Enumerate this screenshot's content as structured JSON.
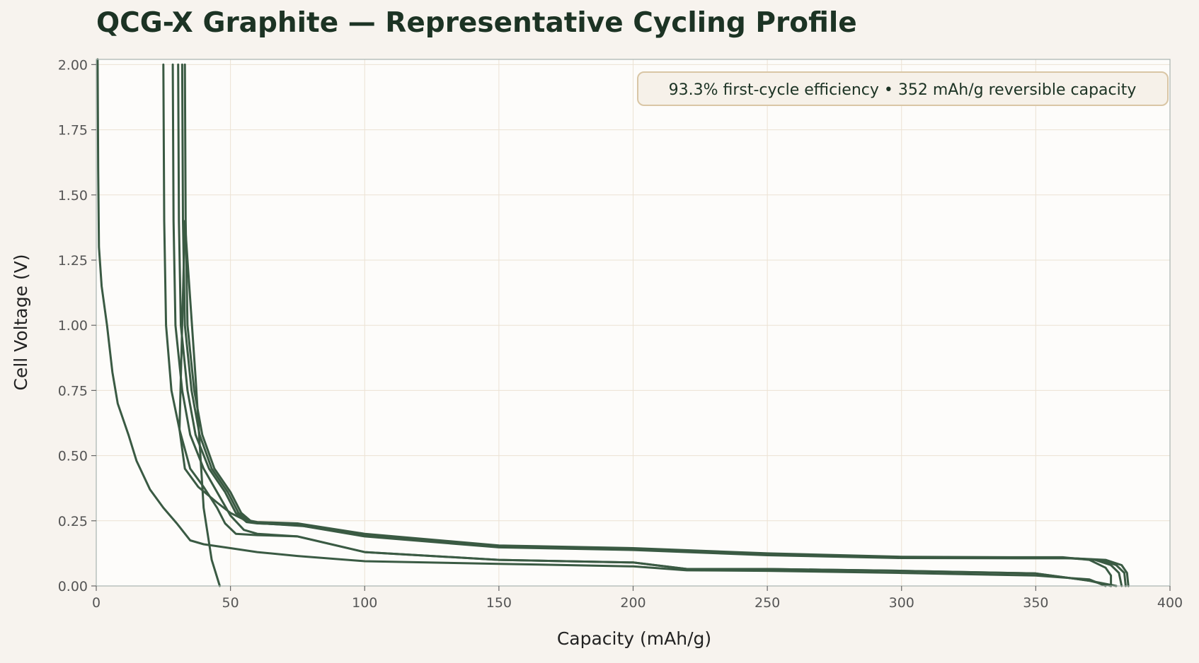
{
  "chart_data": {
    "type": "line",
    "title": "QCG-X Graphite — Representative Cycling Profile",
    "xlabel": "Capacity (mAh/g)",
    "ylabel": "Cell Voltage (V)",
    "xlim": [
      0,
      400
    ],
    "ylim": [
      0,
      2.02
    ],
    "x_ticks": [
      0,
      50,
      100,
      150,
      200,
      250,
      300,
      350,
      400
    ],
    "y_ticks": [
      0.0,
      0.25,
      0.5,
      0.75,
      1.0,
      1.25,
      1.5,
      1.75,
      2.0
    ],
    "grid": true,
    "line_color": "#3a5a43",
    "annotation": {
      "text": "93.3% first-cycle efficiency  •  352 mAh/g reversible capacity",
      "placement": "top-right"
    },
    "series": [
      {
        "points": [
          [
            0.5,
            2.02
          ],
          [
            0.7,
            1.6
          ],
          [
            1,
            1.3
          ],
          [
            2,
            1.15
          ],
          [
            4,
            1.0
          ],
          [
            6,
            0.82
          ],
          [
            8,
            0.7
          ],
          [
            12,
            0.58
          ],
          [
            15,
            0.48
          ],
          [
            20,
            0.37
          ],
          [
            25,
            0.3
          ],
          [
            30,
            0.24
          ],
          [
            35,
            0.175
          ],
          [
            40,
            0.16
          ],
          [
            50,
            0.145
          ],
          [
            60,
            0.13
          ],
          [
            75,
            0.115
          ],
          [
            100,
            0.095
          ],
          [
            150,
            0.085
          ],
          [
            200,
            0.075
          ],
          [
            220,
            0.06
          ],
          [
            250,
            0.058
          ],
          [
            300,
            0.05
          ],
          [
            350,
            0.04
          ],
          [
            370,
            0.025
          ],
          [
            376,
            0.0
          ]
        ]
      },
      {
        "points": [
          [
            25,
            2.0
          ],
          [
            25.3,
            1.4
          ],
          [
            26,
            1.0
          ],
          [
            28,
            0.75
          ],
          [
            31,
            0.6
          ],
          [
            35,
            0.45
          ],
          [
            40,
            0.38
          ],
          [
            45,
            0.3
          ],
          [
            48,
            0.24
          ],
          [
            52,
            0.2
          ],
          [
            60,
            0.195
          ],
          [
            75,
            0.19
          ],
          [
            100,
            0.13
          ],
          [
            150,
            0.1
          ],
          [
            200,
            0.09
          ],
          [
            220,
            0.065
          ],
          [
            250,
            0.065
          ],
          [
            300,
            0.058
          ],
          [
            350,
            0.048
          ],
          [
            370,
            0.02
          ],
          [
            378,
            0.0
          ]
        ]
      },
      {
        "points": [
          [
            46,
            0.0
          ],
          [
            43,
            0.1
          ],
          [
            40,
            0.3
          ],
          [
            37,
            0.8
          ],
          [
            34,
            1.25
          ],
          [
            33,
            1.4
          ],
          [
            32,
            1.0
          ],
          [
            31,
            0.6
          ],
          [
            33,
            0.45
          ],
          [
            38,
            0.38
          ],
          [
            45,
            0.32
          ],
          [
            50,
            0.28
          ],
          [
            55,
            0.255
          ],
          [
            60,
            0.245
          ],
          [
            75,
            0.24
          ],
          [
            100,
            0.2
          ],
          [
            150,
            0.155
          ],
          [
            200,
            0.145
          ],
          [
            250,
            0.125
          ],
          [
            300,
            0.112
          ],
          [
            340,
            0.11
          ],
          [
            360,
            0.11
          ],
          [
            370,
            0.1
          ],
          [
            376,
            0.07
          ],
          [
            378,
            0.04
          ],
          [
            378,
            0.0
          ]
        ]
      },
      {
        "points": [
          [
            28.5,
            2.0
          ],
          [
            28.8,
            1.4
          ],
          [
            29.5,
            1.0
          ],
          [
            32,
            0.75
          ],
          [
            35,
            0.58
          ],
          [
            40,
            0.45
          ],
          [
            45,
            0.36
          ],
          [
            50,
            0.27
          ],
          [
            55,
            0.215
          ],
          [
            60,
            0.2
          ],
          [
            75,
            0.19
          ],
          [
            100,
            0.13
          ],
          [
            150,
            0.1
          ],
          [
            200,
            0.09
          ],
          [
            220,
            0.065
          ],
          [
            250,
            0.065
          ],
          [
            300,
            0.058
          ],
          [
            350,
            0.048
          ],
          [
            370,
            0.02
          ],
          [
            380,
            0.0
          ]
        ]
      },
      {
        "points": [
          [
            30.5,
            2.0
          ],
          [
            30.8,
            1.4
          ],
          [
            31.5,
            1.0
          ],
          [
            34,
            0.75
          ],
          [
            37,
            0.58
          ],
          [
            42,
            0.45
          ],
          [
            48,
            0.36
          ],
          [
            52,
            0.28
          ],
          [
            56,
            0.245
          ],
          [
            60,
            0.24
          ],
          [
            75,
            0.235
          ],
          [
            100,
            0.195
          ],
          [
            150,
            0.152
          ],
          [
            200,
            0.142
          ],
          [
            250,
            0.122
          ],
          [
            300,
            0.11
          ],
          [
            340,
            0.108
          ],
          [
            360,
            0.108
          ],
          [
            372,
            0.1
          ],
          [
            378,
            0.08
          ],
          [
            381,
            0.05
          ],
          [
            382,
            0.0
          ]
        ]
      },
      {
        "points": [
          [
            32,
            2.0
          ],
          [
            32.3,
            1.4
          ],
          [
            33,
            1.0
          ],
          [
            35.5,
            0.75
          ],
          [
            38.5,
            0.58
          ],
          [
            43,
            0.45
          ],
          [
            49,
            0.36
          ],
          [
            53,
            0.28
          ],
          [
            57,
            0.245
          ],
          [
            61,
            0.24
          ],
          [
            76,
            0.232
          ],
          [
            100,
            0.192
          ],
          [
            150,
            0.15
          ],
          [
            200,
            0.14
          ],
          [
            250,
            0.12
          ],
          [
            300,
            0.108
          ],
          [
            342,
            0.107
          ],
          [
            362,
            0.107
          ],
          [
            374,
            0.1
          ],
          [
            380,
            0.08
          ],
          [
            383,
            0.05
          ],
          [
            383.5,
            0.0
          ]
        ]
      },
      {
        "points": [
          [
            33,
            2.0
          ],
          [
            33.3,
            1.4
          ],
          [
            34,
            1.0
          ],
          [
            36.5,
            0.75
          ],
          [
            39.5,
            0.58
          ],
          [
            44,
            0.45
          ],
          [
            50,
            0.36
          ],
          [
            54,
            0.28
          ],
          [
            58,
            0.245
          ],
          [
            62,
            0.24
          ],
          [
            77,
            0.23
          ],
          [
            100,
            0.19
          ],
          [
            150,
            0.148
          ],
          [
            200,
            0.138
          ],
          [
            250,
            0.118
          ],
          [
            300,
            0.107
          ],
          [
            344,
            0.106
          ],
          [
            364,
            0.106
          ],
          [
            376,
            0.1
          ],
          [
            382,
            0.08
          ],
          [
            384,
            0.05
          ],
          [
            384.5,
            0.0
          ]
        ]
      }
    ]
  }
}
